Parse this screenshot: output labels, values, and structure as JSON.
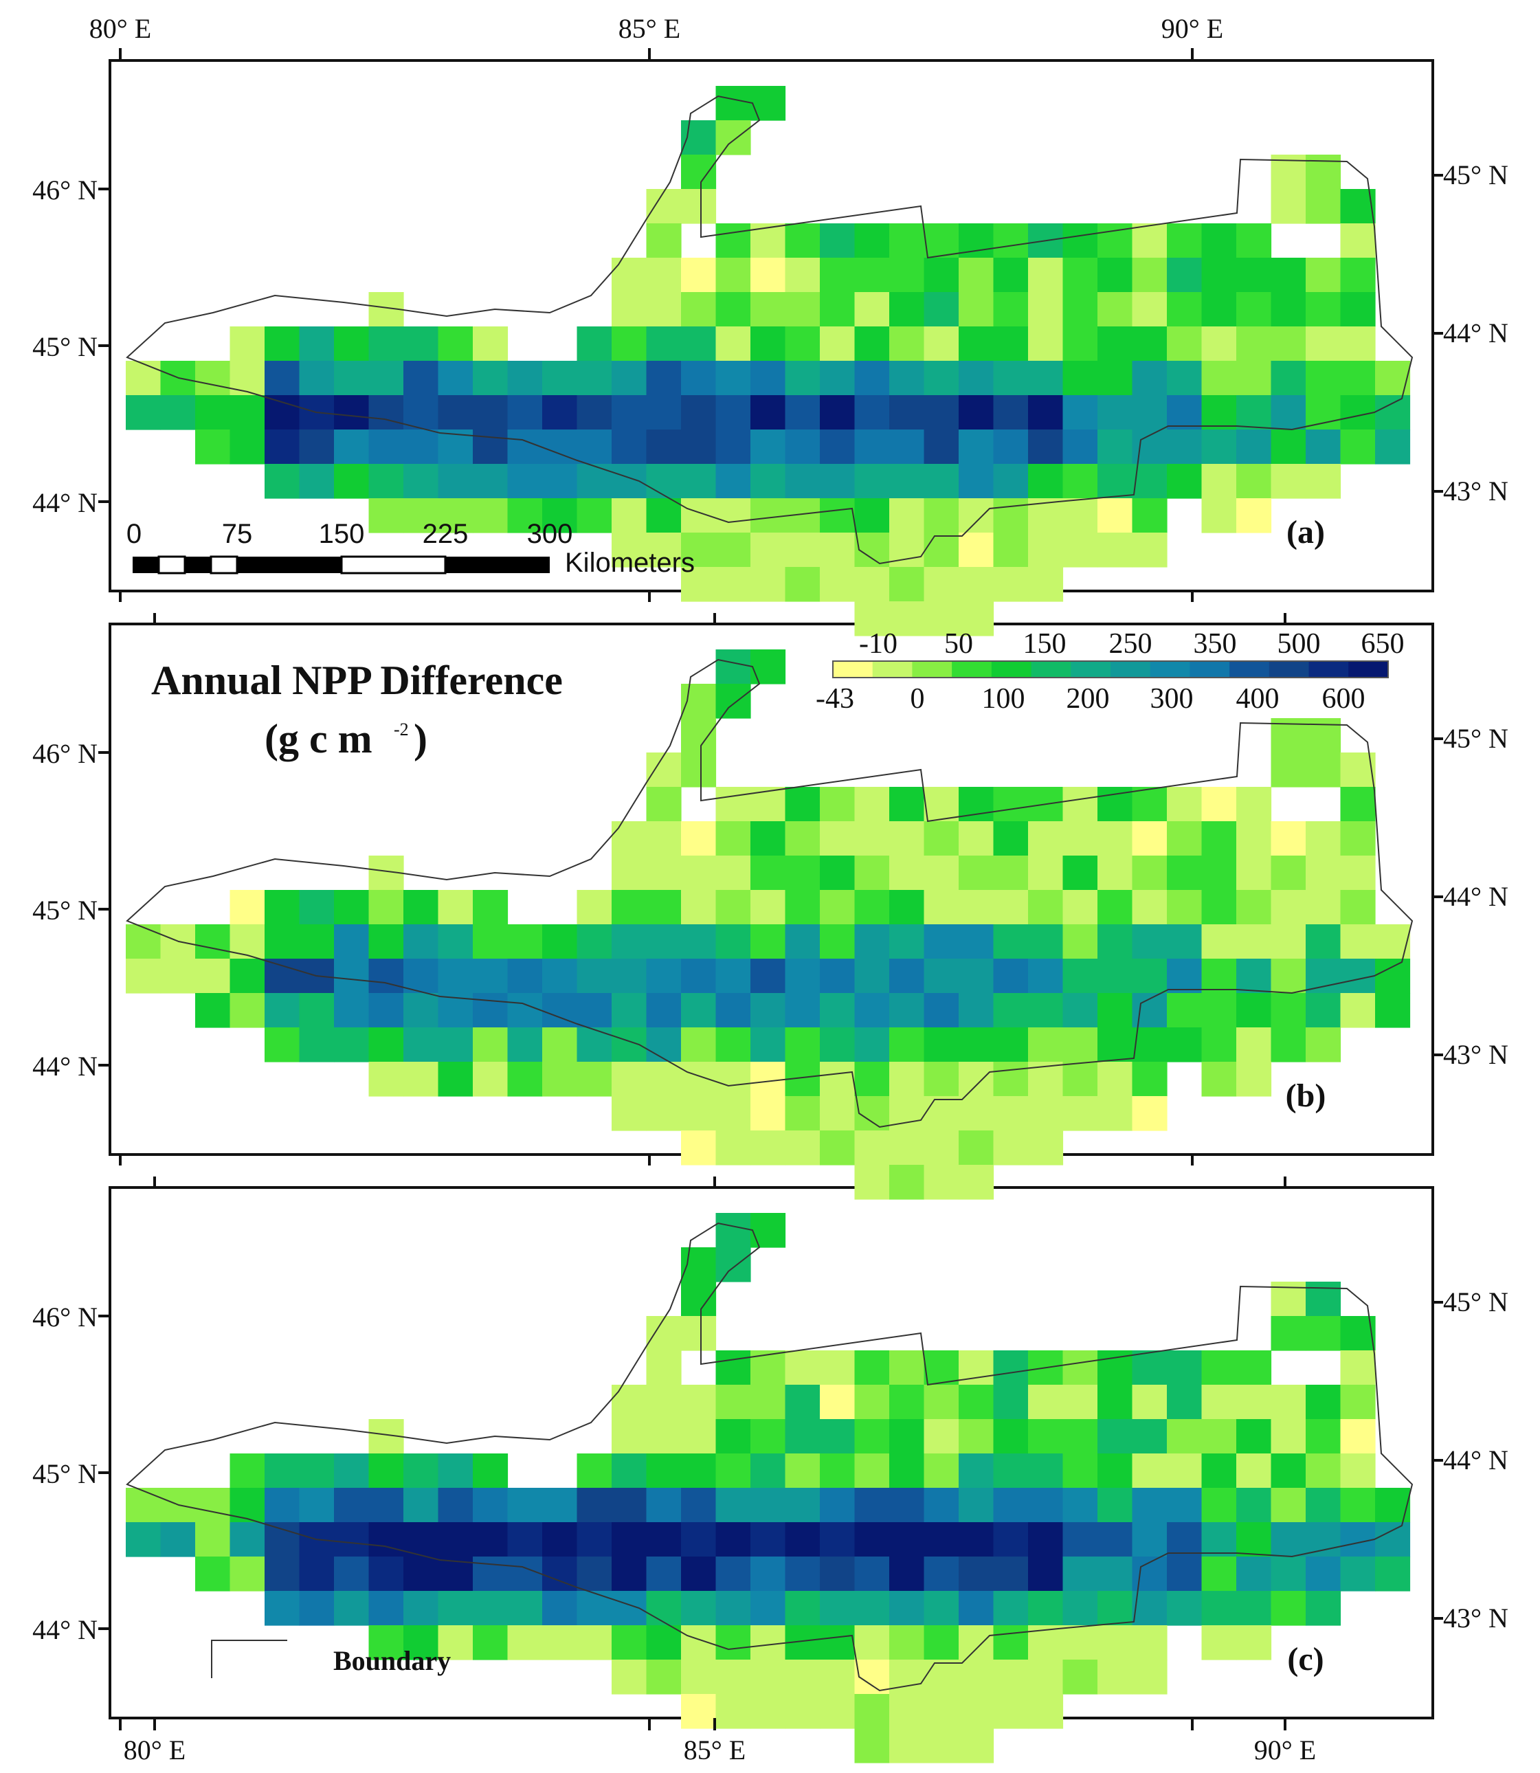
{
  "figure": {
    "title_line1": "Annual NPP Difference",
    "title_line2": "(g c m",
    "title_sup": "-2",
    "title_close": ")"
  },
  "axes": {
    "lon_labels": [
      "80° E",
      "85° E",
      "90° E"
    ],
    "left_lat_labels": [
      "46° N",
      "45° N",
      "44° N"
    ],
    "right_lat_labels": [
      "45° N",
      "44° N",
      "43° N"
    ]
  },
  "panels": [
    {
      "label": "(a)"
    },
    {
      "label": "(b)"
    },
    {
      "label": "(c)"
    }
  ],
  "scalebar": {
    "ticks": [
      "0",
      "75",
      "150",
      "225",
      "300"
    ],
    "unit": "Kilometers"
  },
  "colorbar": {
    "top_labels": [
      "-10",
      "50",
      "150",
      "250",
      "350",
      "500",
      "650"
    ],
    "bottom_labels": [
      "-43",
      "0",
      "100",
      "200",
      "300",
      "400",
      "600"
    ],
    "colors": [
      "#ffff88",
      "#c6f76a",
      "#88ee44",
      "#33dd33",
      "#11cc33",
      "#11bb66",
      "#11aa88",
      "#119999",
      "#1188aa",
      "#1177aa",
      "#115599",
      "#114488",
      "#0a2a80",
      "#061870"
    ]
  },
  "boundary_legend": {
    "label": "Boundary"
  },
  "map_colors": {
    "background": "#ffffff",
    "boundary_line": "#333333"
  }
}
